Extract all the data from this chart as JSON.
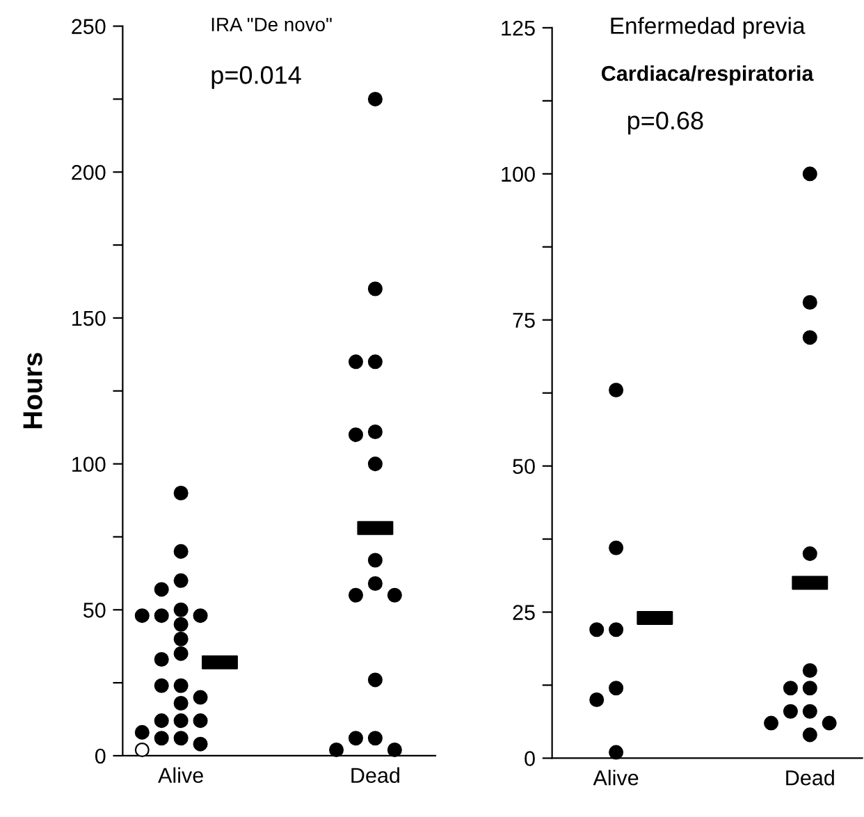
{
  "chart_data": [
    {
      "type": "scatter",
      "title": "IRA \"De novo\"",
      "ylabel": "Hours",
      "annotations": [
        "p=0.014"
      ],
      "categories": [
        "Alive",
        "Dead"
      ],
      "ylim": [
        0,
        250
      ],
      "yticks": [
        0,
        {
          "value": 25,
          "label": null
        },
        50,
        {
          "value": 75,
          "label": null
        },
        100,
        {
          "value": 125,
          "label": null
        },
        150,
        {
          "value": 175,
          "label": null
        },
        200,
        {
          "value": 225,
          "label": null
        },
        250
      ],
      "marker": "circle",
      "grid": false,
      "series": [
        {
          "color": "#000000",
          "x": [
            "Alive",
            "Alive",
            "Alive",
            "Alive",
            "Alive",
            "Alive",
            "Alive",
            "Alive",
            "Alive",
            "Alive",
            "Alive",
            "Alive",
            "Alive",
            "Alive",
            "Alive",
            "Alive",
            "Alive",
            "Alive",
            "Alive",
            "Alive",
            "Alive",
            "Alive",
            "Alive",
            "Dead",
            "Dead",
            "Dead",
            "Dead",
            "Dead",
            "Dead",
            "Dead",
            "Dead",
            "Dead",
            "Dead",
            "Dead",
            "Dead",
            "Dead",
            "Dead",
            "Dead",
            "Dead"
          ],
          "values": [
            90,
            70,
            60,
            57,
            50,
            48,
            48,
            48,
            45,
            40,
            35,
            33,
            24,
            24,
            20,
            18,
            12,
            12,
            12,
            8,
            6,
            6,
            4,
            225,
            160,
            135,
            135,
            111,
            110,
            100,
            67,
            59,
            55,
            55,
            26,
            6,
            6,
            2,
            2
          ]
        },
        {
          "color": "#ffffff",
          "x": [
            "Alive"
          ],
          "values": [
            2
          ]
        },
        {
          "color": "#000000",
          "marker": "square",
          "x": [
            "Alive",
            "Dead"
          ],
          "values": [
            32,
            78
          ]
        }
      ]
    },
    {
      "type": "scatter",
      "title": "Enfermedad previa",
      "subtitle": "Cardiaca/respiratoria",
      "annotations": [
        "p=0.68"
      ],
      "categories": [
        "Alive",
        "Dead"
      ],
      "ylim": [
        0,
        125
      ],
      "yticks": [
        0,
        {
          "value": 12.5,
          "label": null
        },
        25,
        {
          "value": 37.5,
          "label": null
        },
        50,
        {
          "value": 62.5,
          "label": null
        },
        75,
        {
          "value": 87.5,
          "label": null
        },
        100,
        {
          "value": 112.5,
          "label": null
        },
        125
      ],
      "marker": "circle",
      "grid": false,
      "series": [
        {
          "color": "#000000",
          "x": [
            "Alive",
            "Alive",
            "Alive",
            "Alive",
            "Alive",
            "Alive",
            "Alive",
            "Dead",
            "Dead",
            "Dead",
            "Dead",
            "Dead",
            "Dead",
            "Dead",
            "Dead",
            "Dead",
            "Dead",
            "Dead",
            "Dead"
          ],
          "values": [
            63,
            36,
            22,
            22,
            12,
            10,
            1,
            100,
            78,
            72,
            35,
            15,
            12,
            12,
            8,
            8,
            6,
            6,
            4
          ]
        },
        {
          "color": "#000000",
          "marker": "square",
          "x": [
            "Alive",
            "Dead"
          ],
          "values": [
            24,
            30
          ]
        }
      ]
    }
  ]
}
